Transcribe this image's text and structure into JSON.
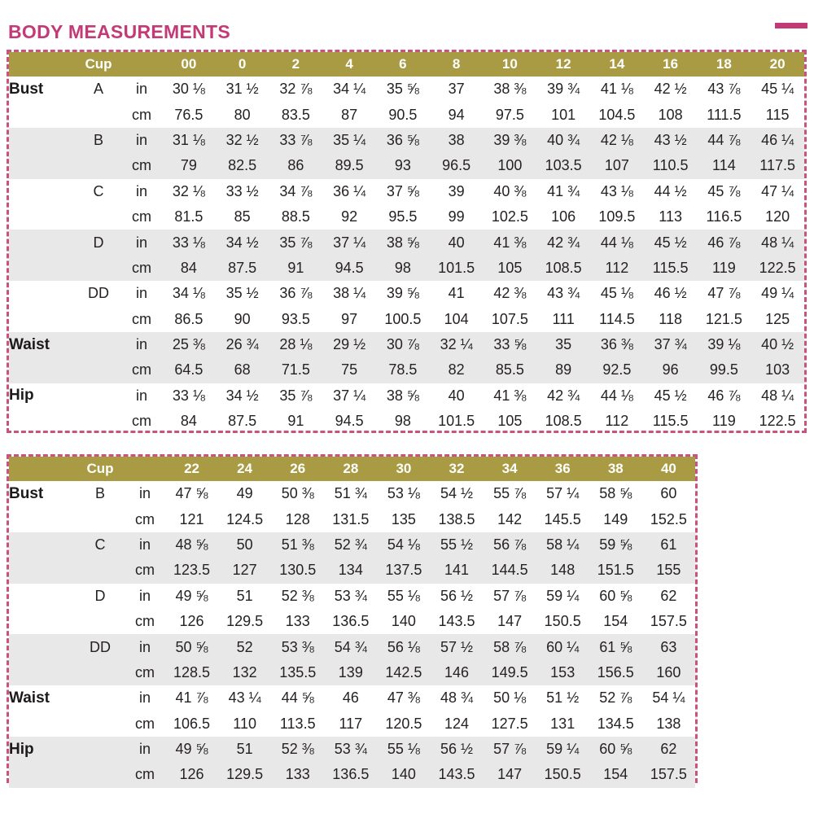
{
  "title": "BODY MEASUREMENTS",
  "colors": {
    "accent_pink": "#c23b76",
    "dashed_border_pink": "#c9537f",
    "header_olive": "#a89b43",
    "header_text": "#ffffff",
    "row_shade_gray": "#e9e8e8",
    "body_text": "#262223"
  },
  "units": {
    "inches": "in",
    "centimeters": "cm"
  },
  "tables": [
    {
      "name": "sizes-00-20",
      "cup_header": "Cup",
      "sizes": [
        "00",
        "0",
        "2",
        "4",
        "6",
        "8",
        "10",
        "12",
        "14",
        "16",
        "18",
        "20"
      ],
      "rows": [
        {
          "label": "Bust",
          "cup": "A",
          "shade": false,
          "in": [
            "30 ⅛",
            "31 ½",
            "32 ⅞",
            "34 ¼",
            "35 ⅝",
            "37",
            "38 ⅜",
            "39 ¾",
            "41 ⅛",
            "42 ½",
            "43 ⅞",
            "45 ¼"
          ],
          "cm": [
            "76.5",
            "80",
            "83.5",
            "87",
            "90.5",
            "94",
            "97.5",
            "101",
            "104.5",
            "108",
            "111.5",
            "115"
          ]
        },
        {
          "label": "",
          "cup": "B",
          "shade": true,
          "in": [
            "31 ⅛",
            "32 ½",
            "33 ⅞",
            "35 ¼",
            "36 ⅝",
            "38",
            "39 ⅜",
            "40 ¾",
            "42 ⅛",
            "43 ½",
            "44 ⅞",
            "46 ¼"
          ],
          "cm": [
            "79",
            "82.5",
            "86",
            "89.5",
            "93",
            "96.5",
            "100",
            "103.5",
            "107",
            "110.5",
            "114",
            "117.5"
          ]
        },
        {
          "label": "",
          "cup": "C",
          "shade": false,
          "in": [
            "32 ⅛",
            "33 ½",
            "34 ⅞",
            "36 ¼",
            "37 ⅝",
            "39",
            "40 ⅜",
            "41 ¾",
            "43 ⅛",
            "44 ½",
            "45 ⅞",
            "47 ¼"
          ],
          "cm": [
            "81.5",
            "85",
            "88.5",
            "92",
            "95.5",
            "99",
            "102.5",
            "106",
            "109.5",
            "113",
            "116.5",
            "120"
          ]
        },
        {
          "label": "",
          "cup": "D",
          "shade": true,
          "in": [
            "33 ⅛",
            "34 ½",
            "35 ⅞",
            "37 ¼",
            "38 ⅝",
            "40",
            "41 ⅜",
            "42 ¾",
            "44 ⅛",
            "45 ½",
            "46 ⅞",
            "48 ¼"
          ],
          "cm": [
            "84",
            "87.5",
            "91",
            "94.5",
            "98",
            "101.5",
            "105",
            "108.5",
            "112",
            "115.5",
            "119",
            "122.5"
          ]
        },
        {
          "label": "",
          "cup": "DD",
          "shade": false,
          "in": [
            "34 ⅛",
            "35 ½",
            "36 ⅞",
            "38 ¼",
            "39 ⅝",
            "41",
            "42 ⅜",
            "43 ¾",
            "45 ⅛",
            "46 ½",
            "47 ⅞",
            "49 ¼"
          ],
          "cm": [
            "86.5",
            "90",
            "93.5",
            "97",
            "100.5",
            "104",
            "107.5",
            "111",
            "114.5",
            "118",
            "121.5",
            "125"
          ]
        },
        {
          "label": "Waist",
          "cup": "",
          "shade": true,
          "in": [
            "25 ⅜",
            "26 ¾",
            "28 ⅛",
            "29 ½",
            "30 ⅞",
            "32 ¼",
            "33 ⅝",
            "35",
            "36 ⅜",
            "37 ¾",
            "39 ⅛",
            "40 ½"
          ],
          "cm": [
            "64.5",
            "68",
            "71.5",
            "75",
            "78.5",
            "82",
            "85.5",
            "89",
            "92.5",
            "96",
            "99.5",
            "103"
          ]
        },
        {
          "label": "Hip",
          "cup": "",
          "shade": false,
          "in": [
            "33 ⅛",
            "34 ½",
            "35 ⅞",
            "37 ¼",
            "38 ⅝",
            "40",
            "41 ⅜",
            "42 ¾",
            "44 ⅛",
            "45 ½",
            "46 ⅞",
            "48 ¼"
          ],
          "cm": [
            "84",
            "87.5",
            "91",
            "94.5",
            "98",
            "101.5",
            "105",
            "108.5",
            "112",
            "115.5",
            "119",
            "122.5"
          ]
        }
      ]
    },
    {
      "name": "sizes-22-40",
      "cup_header": "Cup",
      "sizes": [
        "22",
        "24",
        "26",
        "28",
        "30",
        "32",
        "34",
        "36",
        "38",
        "40"
      ],
      "rows": [
        {
          "label": "Bust",
          "cup": "B",
          "shade": false,
          "in": [
            "47 ⅝",
            "49",
            "50 ⅜",
            "51 ¾",
            "53 ⅛",
            "54 ½",
            "55 ⅞",
            "57 ¼",
            "58 ⅝",
            "60"
          ],
          "cm": [
            "121",
            "124.5",
            "128",
            "131.5",
            "135",
            "138.5",
            "142",
            "145.5",
            "149",
            "152.5"
          ]
        },
        {
          "label": "",
          "cup": "C",
          "shade": true,
          "in": [
            "48 ⅝",
            "50",
            "51 ⅜",
            "52 ¾",
            "54 ⅛",
            "55 ½",
            "56 ⅞",
            "58 ¼",
            "59 ⅝",
            "61"
          ],
          "cm": [
            "123.5",
            "127",
            "130.5",
            "134",
            "137.5",
            "141",
            "144.5",
            "148",
            "151.5",
            "155"
          ]
        },
        {
          "label": "",
          "cup": "D",
          "shade": false,
          "in": [
            "49 ⅝",
            "51",
            "52 ⅜",
            "53 ¾",
            "55 ⅛",
            "56 ½",
            "57 ⅞",
            "59 ¼",
            "60 ⅝",
            "62"
          ],
          "cm": [
            "126",
            "129.5",
            "133",
            "136.5",
            "140",
            "143.5",
            "147",
            "150.5",
            "154",
            "157.5"
          ]
        },
        {
          "label": "",
          "cup": "DD",
          "shade": true,
          "in": [
            "50 ⅝",
            "52",
            "53 ⅜",
            "54 ¾",
            "56 ⅛",
            "57 ½",
            "58 ⅞",
            "60 ¼",
            "61 ⅝",
            "63"
          ],
          "cm": [
            "128.5",
            "132",
            "135.5",
            "139",
            "142.5",
            "146",
            "149.5",
            "153",
            "156.5",
            "160"
          ]
        },
        {
          "label": "Waist",
          "cup": "",
          "shade": false,
          "in": [
            "41 ⅞",
            "43 ¼",
            "44 ⅝",
            "46",
            "47 ⅜",
            "48 ¾",
            "50 ⅛",
            "51 ½",
            "52 ⅞",
            "54 ¼"
          ],
          "cm": [
            "106.5",
            "110",
            "113.5",
            "117",
            "120.5",
            "124",
            "127.5",
            "131",
            "134.5",
            "138"
          ]
        },
        {
          "label": "Hip",
          "cup": "",
          "shade": true,
          "in": [
            "49 ⅝",
            "51",
            "52 ⅜",
            "53 ¾",
            "55 ⅛",
            "56 ½",
            "57 ⅞",
            "59 ¼",
            "60 ⅝",
            "62"
          ],
          "cm": [
            "126",
            "129.5",
            "133",
            "136.5",
            "140",
            "143.5",
            "147",
            "150.5",
            "154",
            "157.5"
          ]
        }
      ]
    }
  ]
}
